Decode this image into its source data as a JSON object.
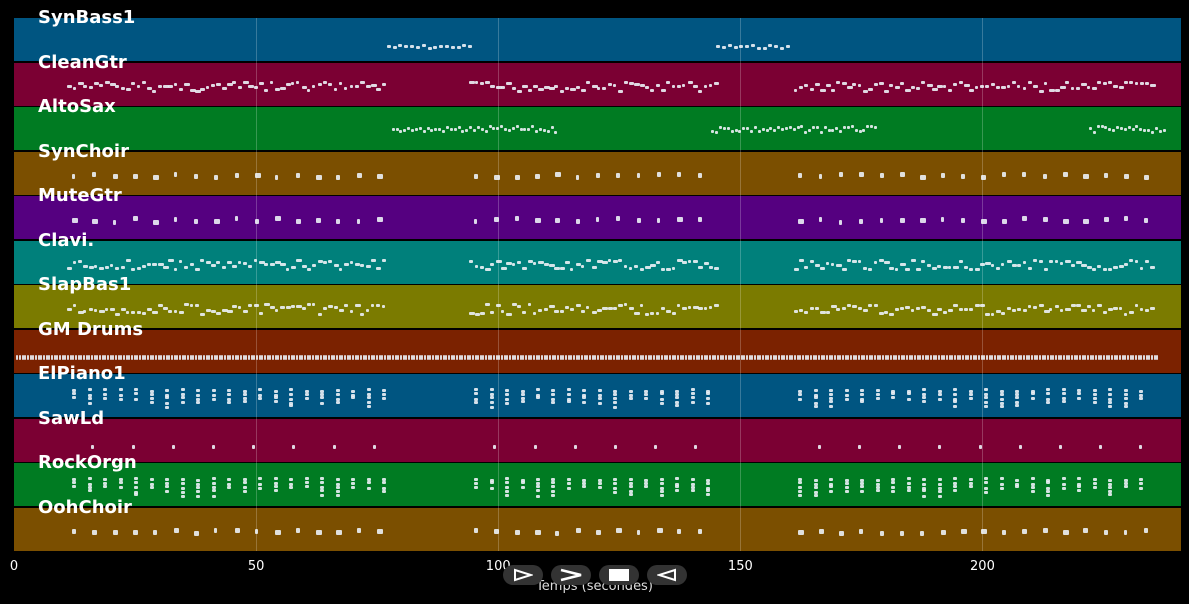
{
  "tracks": [
    {
      "name": "SynBass1",
      "color": "#005581",
      "density": "sparse-low"
    },
    {
      "name": "CleanGtr",
      "color": "#7b0033",
      "density": "dense"
    },
    {
      "name": "AltoSax",
      "color": "#007b22",
      "density": "sax"
    },
    {
      "name": "SynChoir",
      "color": "#7b4f00",
      "density": "dots"
    },
    {
      "name": "MuteGtr",
      "color": "#550080",
      "density": "dots"
    },
    {
      "name": "Clavi.",
      "color": "#00807b",
      "density": "dense"
    },
    {
      "name": "SlapBas1",
      "color": "#7b7b00",
      "density": "dense"
    },
    {
      "name": "GM Drums",
      "color": "#7b2200",
      "density": "drums"
    },
    {
      "name": "ElPiano1",
      "color": "#005581",
      "density": "chords"
    },
    {
      "name": "SawLd",
      "color": "#7b0033",
      "density": "sparse"
    },
    {
      "name": "RockOrgn",
      "color": "#007b22",
      "density": "chords"
    },
    {
      "name": "OohChoir",
      "color": "#7b4f00",
      "density": "dots"
    }
  ],
  "axis": {
    "xlabel": "Temps (secondes)",
    "ticks": [
      "0",
      "50",
      "100",
      "150",
      "200"
    ],
    "tick_values": [
      0,
      50,
      100,
      150,
      200
    ],
    "xmax": 241
  },
  "controls": {
    "play_icon": "play-icon",
    "forward_icon": "forward-icon",
    "stop_icon": "stop-icon",
    "back_icon": "back-icon"
  }
}
